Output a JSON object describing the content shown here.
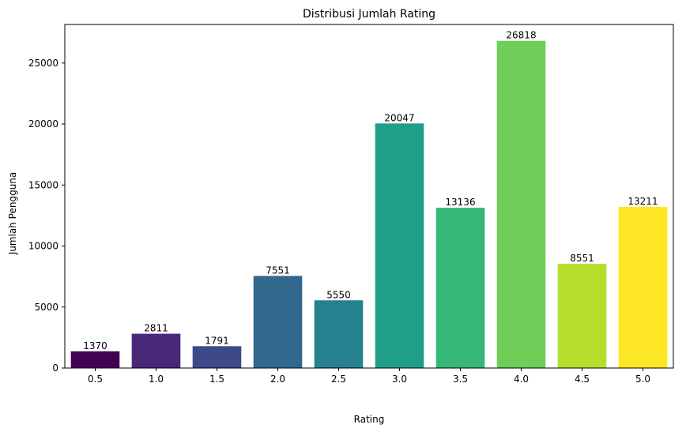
{
  "chart_data": {
    "type": "bar",
    "title": "Distribusi Jumlah Rating",
    "xlabel": "Rating",
    "ylabel": "Jumlah Pengguna",
    "categories": [
      "0.5",
      "1.0",
      "1.5",
      "2.0",
      "2.5",
      "3.0",
      "3.5",
      "4.0",
      "4.5",
      "5.0"
    ],
    "values": [
      1370,
      2811,
      1791,
      7551,
      5550,
      20047,
      13136,
      26818,
      8551,
      13211
    ],
    "data_labels": [
      "1370",
      "2811",
      "1791",
      "7551",
      "5550",
      "20047",
      "13136",
      "26818",
      "8551",
      "13211"
    ],
    "colors": [
      "#440154",
      "#482878",
      "#3e4989",
      "#31688e",
      "#26828e",
      "#1f9e89",
      "#35b779",
      "#6ece58",
      "#b5de2b",
      "#fde725"
    ],
    "y_ticks": [
      0,
      5000,
      10000,
      15000,
      20000,
      25000
    ],
    "y_tick_labels": [
      "0",
      "5000",
      "10000",
      "15000",
      "20000",
      "25000"
    ],
    "ylim": [
      0,
      28159
    ],
    "grid": false,
    "legend": "none"
  }
}
